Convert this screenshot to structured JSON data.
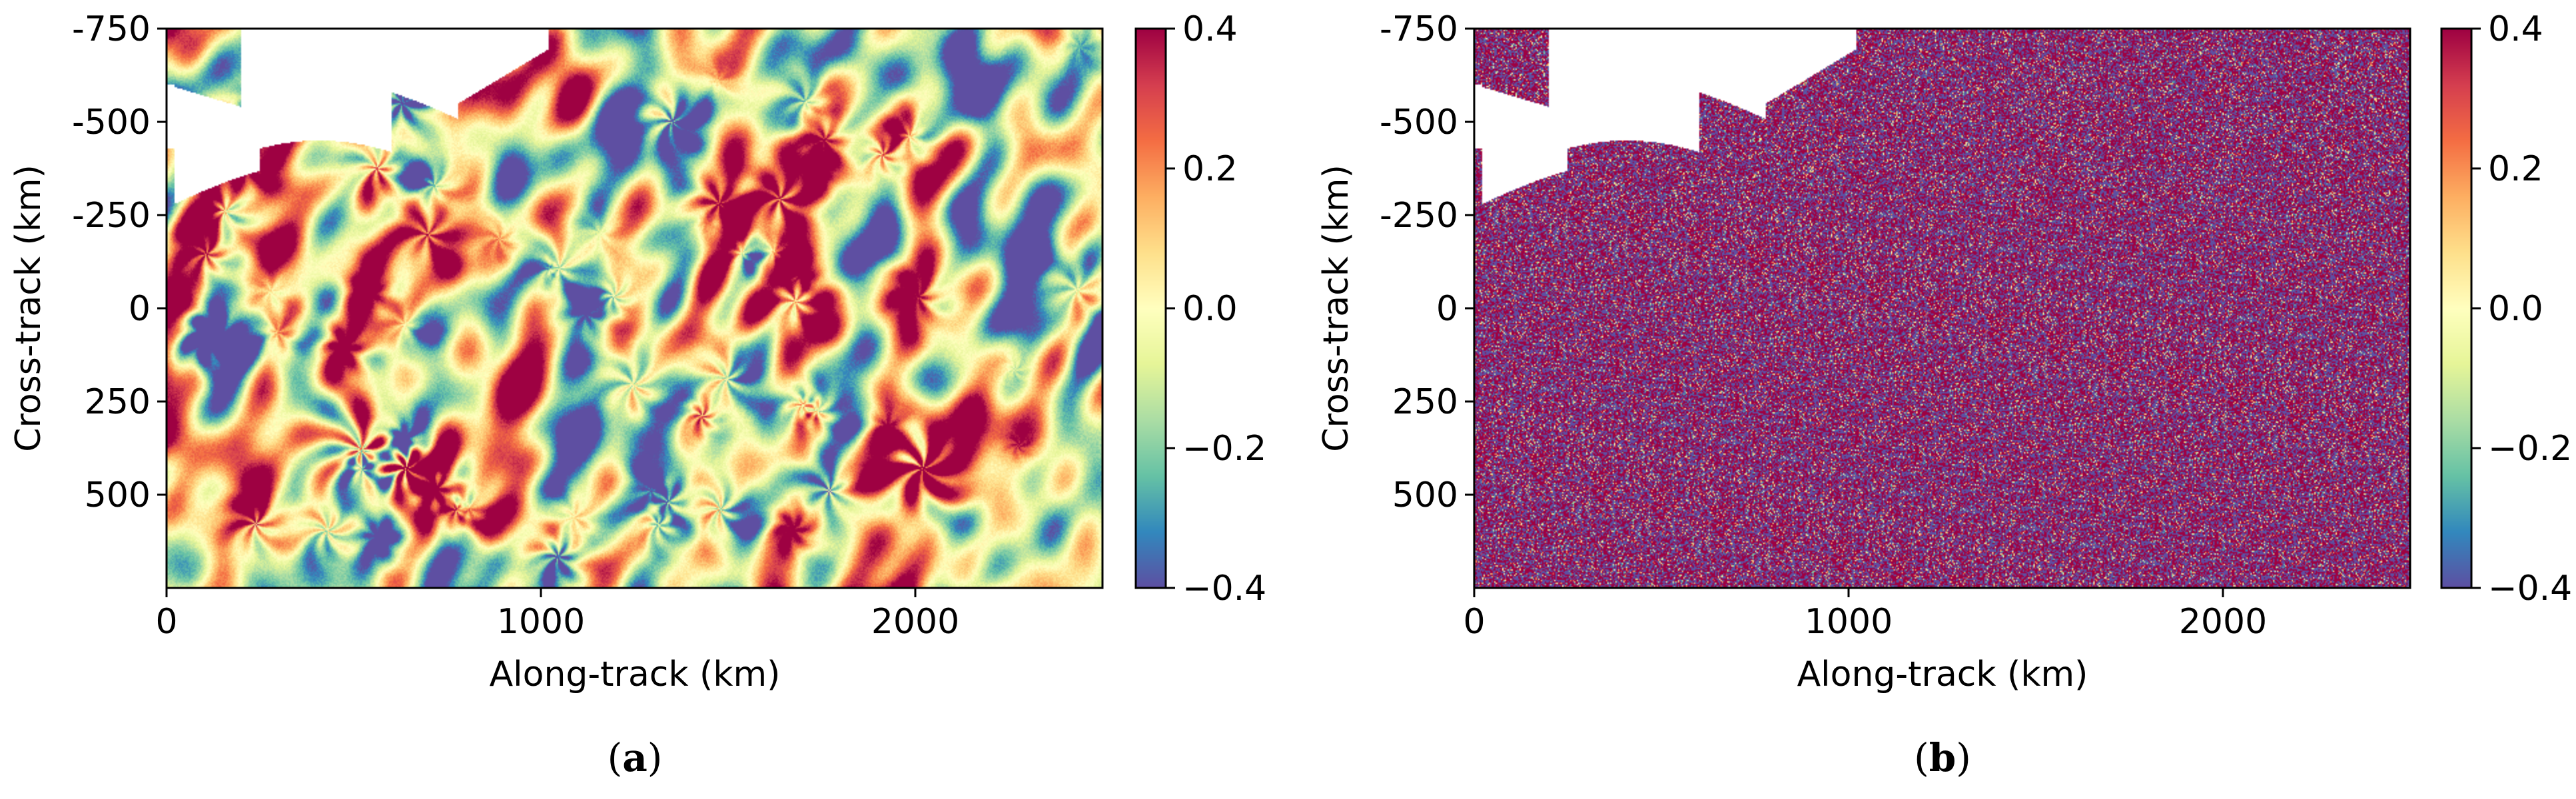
{
  "chart_data": [
    {
      "type": "heatmap",
      "panel_label": "a",
      "xlabel": "Along-track (km)",
      "ylabel": "Cross-track (km)",
      "xlim": [
        0,
        2500
      ],
      "ylim": [
        -750,
        750
      ],
      "xticks": [
        "0",
        "1000",
        "2000"
      ],
      "xtick_values": [
        0,
        1000,
        2000
      ],
      "yticks": [
        "-750",
        "-500",
        "-250",
        "0",
        "250",
        "500"
      ],
      "ytick_values": [
        -750,
        -500,
        -250,
        0,
        250,
        500
      ],
      "y_inverted": true,
      "colormap": "Spectral_r",
      "field_description": "smooth eddy field with coherent vortices and filaments",
      "noise_level": 0.0,
      "colorbar": {
        "range": [
          -0.4,
          0.4
        ],
        "ticks": [
          "0.4",
          "0.2",
          "0.0",
          "−0.2",
          "−0.4"
        ],
        "tick_values": [
          0.4,
          0.2,
          0.0,
          -0.2,
          -0.4
        ]
      }
    },
    {
      "type": "heatmap",
      "panel_label": "b",
      "xlabel": "Along-track (km)",
      "ylabel": "Cross-track (km)",
      "xlim": [
        0,
        2500
      ],
      "ylim": [
        -750,
        750
      ],
      "xticks": [
        "0",
        "1000",
        "2000"
      ],
      "xtick_values": [
        0,
        1000,
        2000
      ],
      "yticks": [
        "-750",
        "-500",
        "-250",
        "0",
        "250",
        "500"
      ],
      "ytick_values": [
        -750,
        -500,
        -250,
        0,
        250,
        500
      ],
      "y_inverted": true,
      "colormap": "Spectral_r",
      "field_description": "noise-dominated field saturated at colorbar limits",
      "noise_level": 1.0,
      "colorbar": {
        "range": [
          -0.4,
          0.4
        ],
        "ticks": [
          "0.4",
          "0.2",
          "0.0",
          "−0.2",
          "−0.4"
        ],
        "tick_values": [
          0.4,
          0.2,
          0.0,
          -0.2,
          -0.4
        ]
      }
    }
  ],
  "colors": {
    "spectral_r": [
      "#5e4fa2",
      "#3288bd",
      "#66c2a5",
      "#abdda4",
      "#e6f598",
      "#ffffbf",
      "#fee08b",
      "#fdae61",
      "#f46d43",
      "#d53e4f",
      "#9e0142"
    ],
    "land": "#ffffff",
    "axis": "#000000"
  }
}
